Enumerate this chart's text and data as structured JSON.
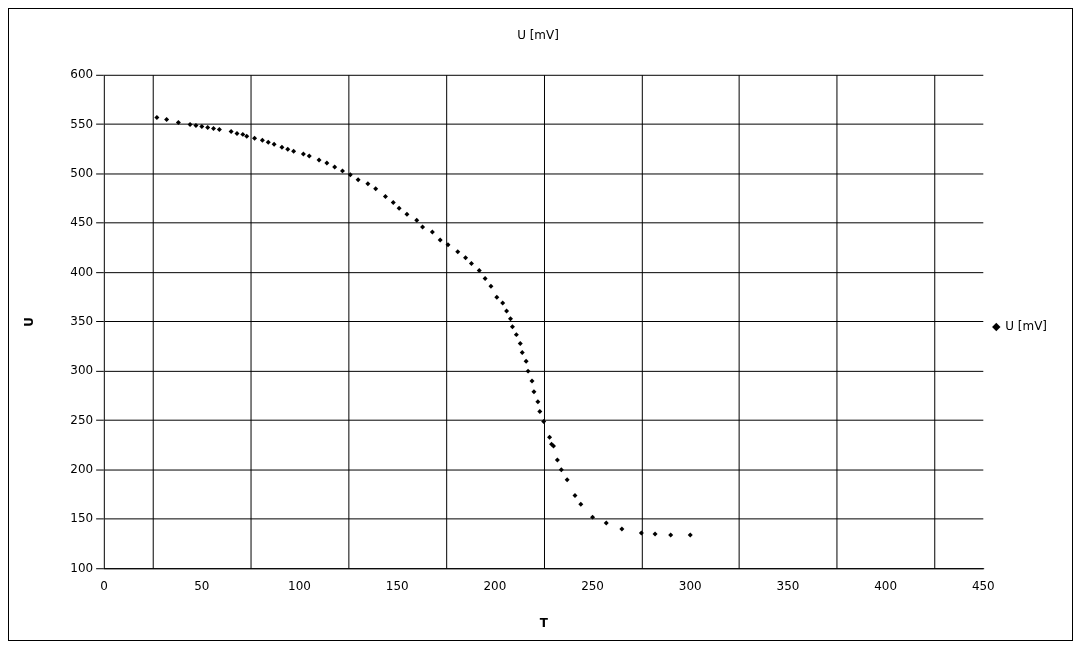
{
  "chart_data": {
    "type": "scatter",
    "title": "U [mV]",
    "xlabel": "T",
    "ylabel": "U",
    "xlim": [
      0,
      450
    ],
    "xticks": [
      0,
      50,
      100,
      150,
      200,
      250,
      300,
      350,
      400,
      450
    ],
    "ylim": [
      100,
      600
    ],
    "yticks": [
      100,
      150,
      200,
      250,
      300,
      350,
      400,
      450,
      500,
      550,
      600
    ],
    "grid": true,
    "legend": "right",
    "marker": "diamond",
    "series": [
      {
        "name": "U [mV]",
        "color": "#000000",
        "x": [
          27,
          32,
          38,
          44,
          47,
          50,
          53,
          56,
          59,
          65,
          68,
          71,
          73,
          77,
          81,
          84,
          87,
          91,
          94,
          97,
          102,
          105,
          110,
          114,
          118,
          122,
          126,
          130,
          135,
          139,
          144,
          148,
          151,
          155,
          160,
          163,
          168,
          172,
          176,
          181,
          185,
          188,
          192,
          195,
          198,
          201,
          204,
          206,
          208,
          209,
          211,
          213,
          214,
          216,
          217,
          219,
          220,
          222,
          223,
          225,
          228,
          229,
          230,
          232,
          234,
          237,
          241,
          244,
          250,
          257,
          265,
          275,
          282,
          290,
          300
        ],
        "values": [
          557,
          555,
          552,
          550,
          549,
          548,
          547,
          546,
          545,
          543,
          541,
          540,
          538,
          536,
          534,
          532,
          530,
          527,
          525,
          523,
          520,
          518,
          514,
          511,
          507,
          503,
          499,
          494,
          490,
          485,
          477,
          471,
          465,
          459,
          453,
          446,
          441,
          433,
          428,
          421,
          415,
          409,
          402,
          394,
          386,
          375,
          369,
          361,
          353,
          345,
          337,
          328,
          319,
          310,
          300,
          290,
          279,
          269,
          259,
          249,
          233,
          226,
          224,
          210,
          200,
          190,
          174,
          165,
          152,
          146,
          140,
          136,
          135,
          134,
          134
        ]
      }
    ]
  }
}
